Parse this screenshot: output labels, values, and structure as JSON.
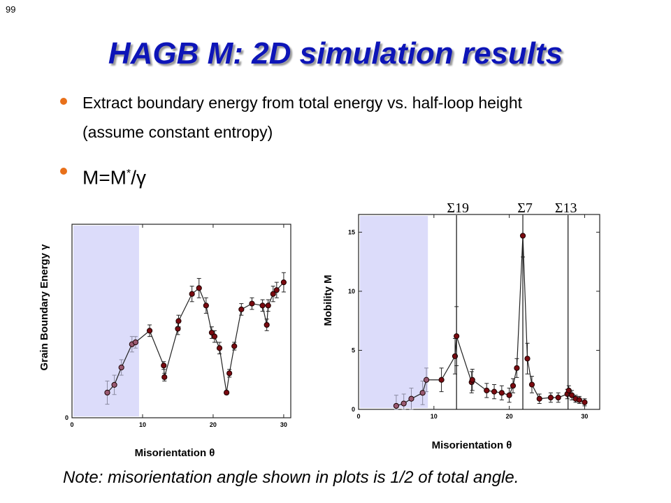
{
  "slide_number": "99",
  "title": "HAGB M: 2D simulation results",
  "bullets": [
    "Extract boundary energy from total energy vs. half-loop height (assume constant entropy)",
    "M=M",
    "*",
    "/γ"
  ],
  "note": "Note: misorientation angle shown in plots is 1/2 of total angle.",
  "colors": {
    "title": "#0d15b8",
    "bullet": "#e8701a",
    "shade": "#dcdcfa",
    "marker": "#7a0a10"
  },
  "chart_data": [
    {
      "type": "scatter",
      "title": "",
      "xlabel": "Misorientation θ",
      "ylabel": "Grain Boundary Energy γ",
      "xlim": [
        0,
        31
      ],
      "ylim": [
        0,
        1
      ],
      "x_ticks": [
        "0",
        "10",
        "20",
        "30"
      ],
      "y_ticks": [
        "0"
      ],
      "shaded_region": [
        0,
        9.5
      ],
      "grid": false,
      "points": [
        {
          "x": 5.0,
          "y": 0.13,
          "e": 0.06
        },
        {
          "x": 6.0,
          "y": 0.17,
          "e": 0.05
        },
        {
          "x": 7.0,
          "y": 0.26,
          "e": 0.04
        },
        {
          "x": 8.5,
          "y": 0.38,
          "e": 0.04
        },
        {
          "x": 9.0,
          "y": 0.39,
          "e": 0.03
        },
        {
          "x": 11.0,
          "y": 0.45,
          "e": 0.03
        },
        {
          "x": 13.0,
          "y": 0.27,
          "e": 0.02
        },
        {
          "x": 13.1,
          "y": 0.21,
          "e": 0.02
        },
        {
          "x": 15.0,
          "y": 0.46,
          "e": 0.03
        },
        {
          "x": 15.1,
          "y": 0.5,
          "e": 0.03
        },
        {
          "x": 17.0,
          "y": 0.64,
          "e": 0.04
        },
        {
          "x": 18.0,
          "y": 0.67,
          "e": 0.05
        },
        {
          "x": 19.0,
          "y": 0.58,
          "e": 0.04
        },
        {
          "x": 19.8,
          "y": 0.44,
          "e": 0.03
        },
        {
          "x": 20.2,
          "y": 0.42,
          "e": 0.03
        },
        {
          "x": 20.9,
          "y": 0.36,
          "e": 0.03
        },
        {
          "x": 21.9,
          "y": 0.13,
          "e": 0.01
        },
        {
          "x": 22.3,
          "y": 0.23,
          "e": 0.02
        },
        {
          "x": 23.0,
          "y": 0.37,
          "e": 0.02
        },
        {
          "x": 24.0,
          "y": 0.56,
          "e": 0.03
        },
        {
          "x": 25.5,
          "y": 0.59,
          "e": 0.03
        },
        {
          "x": 27.0,
          "y": 0.58,
          "e": 0.03
        },
        {
          "x": 27.6,
          "y": 0.48,
          "e": 0.03
        },
        {
          "x": 27.8,
          "y": 0.58,
          "e": 0.03
        },
        {
          "x": 28.5,
          "y": 0.64,
          "e": 0.04
        },
        {
          "x": 29.0,
          "y": 0.66,
          "e": 0.04
        },
        {
          "x": 30.0,
          "y": 0.7,
          "e": 0.05
        }
      ]
    },
    {
      "type": "scatter",
      "title": "",
      "xlabel": "Misorientation θ",
      "ylabel": "Mobility M",
      "xlim": [
        0,
        32
      ],
      "ylim": [
        0,
        16.5
      ],
      "x_ticks": [
        "0",
        "10",
        "20",
        "30"
      ],
      "y_ticks": [
        "0",
        "5",
        "10",
        "15"
      ],
      "shaded_region": [
        0,
        9.2
      ],
      "grid": false,
      "vlines": [
        {
          "x": 13.0,
          "label": "Σ19"
        },
        {
          "x": 21.8,
          "label": "Σ7"
        },
        {
          "x": 27.8,
          "label": "Σ13"
        }
      ],
      "points": [
        {
          "x": 5.0,
          "y": 0.3,
          "e": 0.9
        },
        {
          "x": 6.0,
          "y": 0.5,
          "e": 0.8
        },
        {
          "x": 7.0,
          "y": 0.9,
          "e": 0.9
        },
        {
          "x": 8.5,
          "y": 1.4,
          "e": 1.0
        },
        {
          "x": 9.0,
          "y": 2.5,
          "e": 1.0
        },
        {
          "x": 11.0,
          "y": 2.5,
          "e": 1.0
        },
        {
          "x": 12.8,
          "y": 4.5,
          "e": 1.5
        },
        {
          "x": 13.0,
          "y": 6.2,
          "e": 2.5
        },
        {
          "x": 15.0,
          "y": 2.3,
          "e": 0.9
        },
        {
          "x": 15.1,
          "y": 2.5,
          "e": 0.9
        },
        {
          "x": 17.0,
          "y": 1.6,
          "e": 0.6
        },
        {
          "x": 18.0,
          "y": 1.5,
          "e": 0.6
        },
        {
          "x": 19.0,
          "y": 1.4,
          "e": 0.6
        },
        {
          "x": 20.0,
          "y": 1.2,
          "e": 0.6
        },
        {
          "x": 20.5,
          "y": 2.0,
          "e": 0.6
        },
        {
          "x": 21.0,
          "y": 3.5,
          "e": 0.8
        },
        {
          "x": 21.8,
          "y": 14.7,
          "e": 1.8
        },
        {
          "x": 22.4,
          "y": 4.3,
          "e": 1.3
        },
        {
          "x": 23.0,
          "y": 2.1,
          "e": 0.7
        },
        {
          "x": 24.0,
          "y": 0.9,
          "e": 0.4
        },
        {
          "x": 25.5,
          "y": 1.0,
          "e": 0.4
        },
        {
          "x": 26.5,
          "y": 1.0,
          "e": 0.4
        },
        {
          "x": 27.7,
          "y": 1.3,
          "e": 0.4
        },
        {
          "x": 27.9,
          "y": 1.6,
          "e": 0.4
        },
        {
          "x": 28.3,
          "y": 1.2,
          "e": 0.4
        },
        {
          "x": 28.8,
          "y": 0.9,
          "e": 0.3
        },
        {
          "x": 29.3,
          "y": 0.8,
          "e": 0.3
        },
        {
          "x": 30.0,
          "y": 0.6,
          "e": 0.3
        }
      ]
    }
  ]
}
